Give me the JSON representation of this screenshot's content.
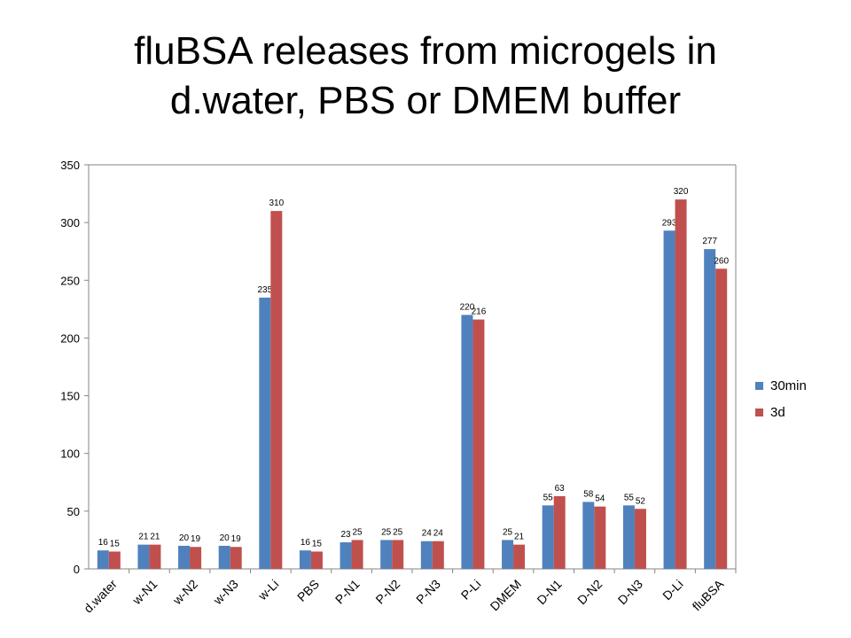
{
  "chart_data": {
    "type": "bar",
    "title": "fluBSA releases from microgels in d.water, PBS or DMEM buffer",
    "title_lines": [
      "fluBSA releases from microgels in",
      "d.water, PBS or DMEM buffer"
    ],
    "xlabel": "",
    "ylabel": "",
    "ylim": [
      0,
      350
    ],
    "yticks": [
      0,
      50,
      100,
      150,
      200,
      250,
      300,
      350
    ],
    "grid": false,
    "legend_position": "right",
    "categories": [
      "d.water",
      "w-N1",
      "w-N2",
      "w-N3",
      "w-Li",
      "PBS",
      "P-N1",
      "P-N2",
      "P-N3",
      "P-Li",
      "DMEM",
      "D-N1",
      "D-N2",
      "D-N3",
      "D-Li",
      "fluBSA"
    ],
    "series": [
      {
        "name": "30min",
        "color": "#4F81BD",
        "values": [
          16,
          21,
          20,
          20,
          235,
          16,
          23,
          25,
          24,
          220,
          25,
          55,
          58,
          55,
          293,
          277
        ]
      },
      {
        "name": "3d",
        "color": "#C0504D",
        "values": [
          15,
          21,
          19,
          19,
          310,
          15,
          25,
          25,
          24,
          216,
          21,
          63,
          54,
          52,
          320,
          260
        ]
      }
    ]
  }
}
